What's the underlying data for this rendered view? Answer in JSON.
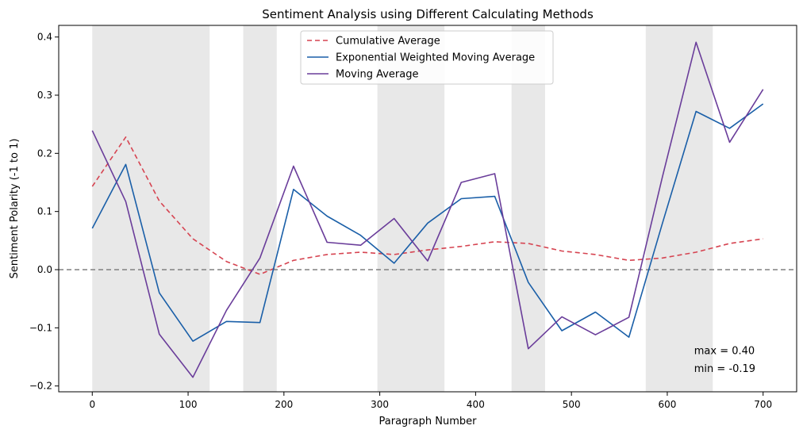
{
  "chart_data": {
    "type": "line",
    "title": "Sentiment Analysis using Different Calculating Methods",
    "xlabel": "Paragraph Number",
    "ylabel": "Sentiment Polarity (-1 to 1)",
    "xlim": [
      -35,
      735
    ],
    "ylim": [
      -0.21,
      0.42
    ],
    "xticks": [
      0,
      100,
      200,
      300,
      400,
      500,
      600,
      700
    ],
    "yticks": [
      -0.2,
      -0.1,
      0.0,
      0.1,
      0.2,
      0.3,
      0.4
    ],
    "ytick_labels": [
      "−0.2",
      "−0.1",
      "0.0",
      "0.1",
      "0.2",
      "0.3",
      "0.4"
    ],
    "grid": false,
    "legend_position": "top-center",
    "reference_line": {
      "y": 0.0,
      "color": "#808080",
      "style": "dashed"
    },
    "shaded_regions": [
      {
        "x0": 0,
        "x1": 17.5
      },
      {
        "x0": 17.5,
        "x1": 52.5
      },
      {
        "x0": 52.5,
        "x1": 87.5
      },
      {
        "x0": 87.5,
        "x1": 122.5
      },
      {
        "x0": 157.5,
        "x1": 192.5
      },
      {
        "x0": 297.5,
        "x1": 332.5
      },
      {
        "x0": 332.5,
        "x1": 367.5
      },
      {
        "x0": 437.5,
        "x1": 472.5
      },
      {
        "x0": 577.5,
        "x1": 612.5
      },
      {
        "x0": 612.5,
        "x1": 647.5
      }
    ],
    "x": [
      0,
      35,
      70,
      105,
      140,
      175,
      210,
      245,
      280,
      315,
      350,
      385,
      420,
      455,
      490,
      525,
      560,
      595,
      630,
      665,
      700
    ],
    "series": [
      {
        "name": "Cumulative Average",
        "color": "#d64451",
        "style": "dashed",
        "values": [
          0.143,
          0.228,
          0.118,
          0.053,
          0.014,
          -0.008,
          0.016,
          0.026,
          0.03,
          0.026,
          0.034,
          0.04,
          0.048,
          0.045,
          0.032,
          0.026,
          0.016,
          0.02,
          0.03,
          0.045,
          0.053
        ]
      },
      {
        "name": "Exponential Weighted Moving Average",
        "color": "#1a5fa8",
        "style": "solid",
        "values": [
          0.071,
          0.181,
          -0.04,
          -0.123,
          -0.089,
          -0.091,
          0.138,
          0.092,
          0.059,
          0.011,
          0.08,
          0.122,
          0.126,
          -0.022,
          -0.105,
          -0.073,
          -0.116,
          0.08,
          0.272,
          0.243,
          0.285
        ]
      },
      {
        "name": "Moving Average",
        "color": "#6a3d9a",
        "style": "solid",
        "values": [
          0.239,
          0.117,
          -0.111,
          -0.185,
          -0.07,
          0.02,
          0.178,
          0.047,
          0.042,
          0.088,
          0.015,
          0.15,
          0.165,
          -0.136,
          -0.081,
          -0.112,
          -0.082,
          0.16,
          0.391,
          0.219,
          0.31
        ]
      }
    ],
    "annotations": [
      {
        "text": "max = 0.40",
        "x": 628,
        "y": -0.145
      },
      {
        "text": "min = -0.19",
        "x": 628,
        "y": -0.176
      }
    ]
  }
}
